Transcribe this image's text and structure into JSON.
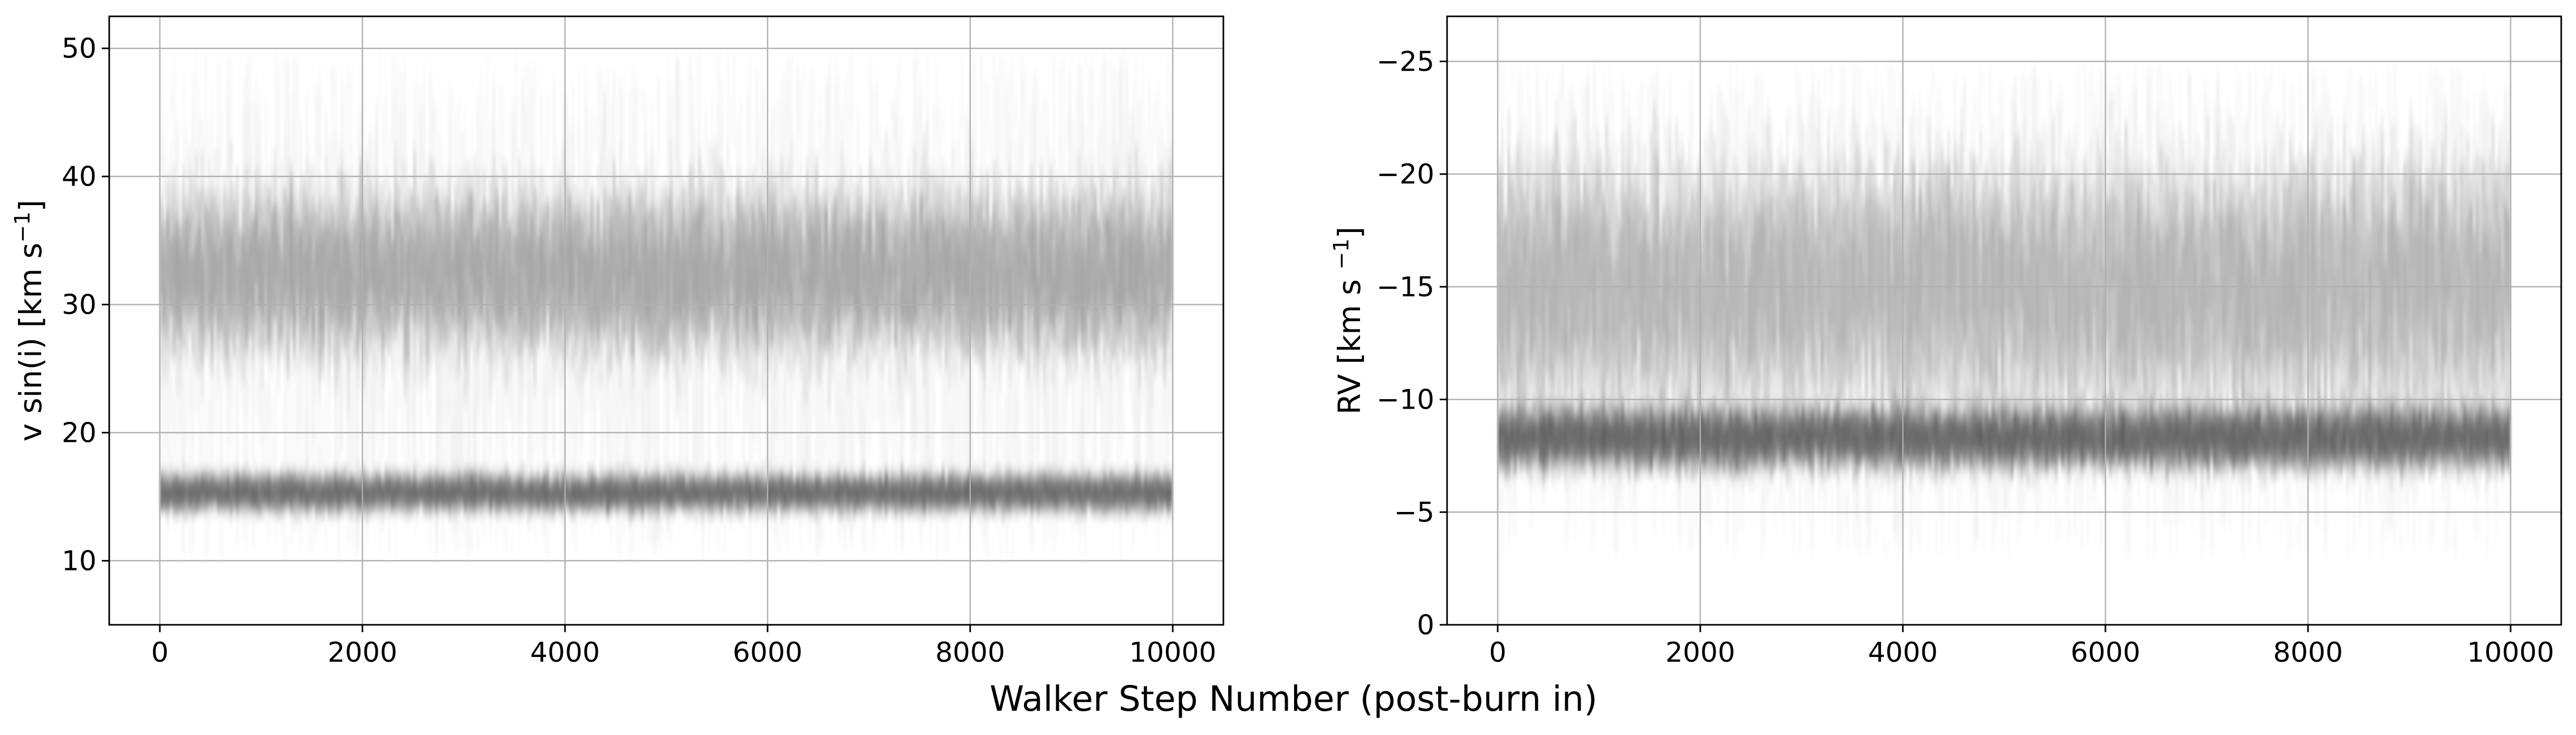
{
  "figure": {
    "shared_xlabel": "Walker Step Number (post-burn in)"
  },
  "chart_data": [
    {
      "type": "line",
      "name": "left-panel",
      "ylabel_parts": [
        "v sin(i) [km s",
        "−1",
        "]"
      ],
      "xlim": [
        -500,
        10500
      ],
      "ylim": [
        5,
        52.5
      ],
      "x_ticks": [
        0,
        2000,
        4000,
        6000,
        8000,
        10000
      ],
      "x_tick_labels": [
        "0",
        "2000",
        "4000",
        "6000",
        "8000",
        "10000"
      ],
      "y_ticks": [
        10,
        20,
        30,
        40,
        50
      ],
      "y_tick_labels": [
        "10",
        "20",
        "30",
        "40",
        "50"
      ],
      "y_inverted": false,
      "grid": true,
      "color": "#000000",
      "walker_steps": [
        0,
        10000
      ],
      "density_modes": [
        {
          "center": 15.3,
          "halfwidth": 1.4,
          "strength": 1.0
        },
        {
          "center": 32.5,
          "halfwidth": 6.0,
          "strength": 0.55
        }
      ],
      "walker_range": [
        10,
        50
      ]
    },
    {
      "type": "line",
      "name": "right-panel",
      "ylabel_parts": [
        "RV [km s ",
        "−1",
        "]"
      ],
      "xlim": [
        -500,
        10500
      ],
      "ylim": [
        0,
        -27
      ],
      "x_ticks": [
        0,
        2000,
        4000,
        6000,
        8000,
        10000
      ],
      "x_tick_labels": [
        "0",
        "2000",
        "4000",
        "6000",
        "8000",
        "10000"
      ],
      "y_ticks": [
        0,
        -5,
        -10,
        -15,
        -20,
        -25
      ],
      "y_tick_labels": [
        "0",
        "−5",
        "−10",
        "−15",
        "−20",
        "−25"
      ],
      "y_inverted": true,
      "grid": true,
      "color": "#000000",
      "walker_steps": [
        0,
        10000
      ],
      "density_modes": [
        {
          "center": -8.3,
          "halfwidth": 1.3,
          "strength": 1.0
        },
        {
          "center": -15.0,
          "halfwidth": 5.0,
          "strength": 0.45
        }
      ],
      "walker_range": [
        -3,
        -25
      ]
    }
  ]
}
